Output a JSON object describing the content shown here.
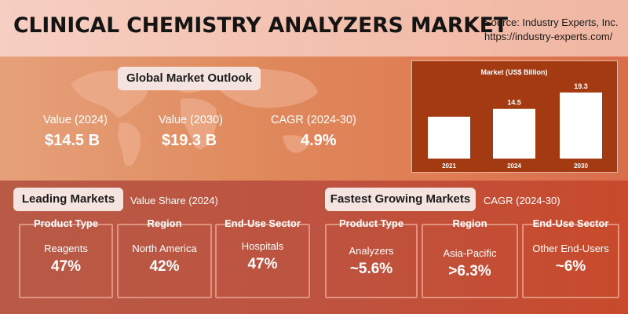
{
  "header": {
    "title": "CLINICAL CHEMISTRY ANALYZERS MARKET",
    "source_line1": "Source: Industry Experts, Inc.",
    "source_line2": "https://industry-experts.com/"
  },
  "outlook": {
    "label": "Global Market Outlook",
    "stats": [
      {
        "label": "Value (2024)",
        "value": "$14.5 B"
      },
      {
        "label": "Value (2030)",
        "value": "$19.3 B"
      },
      {
        "label": "CAGR (2024-30)",
        "value": "4.9%"
      }
    ]
  },
  "chart_data": {
    "type": "bar",
    "title": "Market (US$ Billion)",
    "categories": [
      "2021",
      "2024",
      "2030"
    ],
    "values": [
      null,
      14.5,
      19.3
    ],
    "data_labels": [
      "",
      "14.5",
      "19.3"
    ],
    "estimated_values": [
      12.2,
      14.5,
      19.3
    ],
    "xlabel": "",
    "ylabel": "",
    "ylim": [
      0,
      22
    ],
    "grid": false,
    "bar_color": "#ffffff",
    "background": "#a43a12"
  },
  "leading": {
    "label": "Leading Markets",
    "sublabel": "Value Share (2024)",
    "cards": [
      {
        "head": "Product Type",
        "sub": "Reagents",
        "value": "47%"
      },
      {
        "head": "Region",
        "sub": "North America",
        "value": "42%"
      },
      {
        "head": "End-Use Sector",
        "sub": "Hospitals",
        "value": "47%"
      }
    ]
  },
  "fastest": {
    "label": "Fastest Growing Markets",
    "sublabel": "CAGR (2024-30)",
    "cards": [
      {
        "head": "Product Type",
        "sub": "Analyzers",
        "value": "~5.6%"
      },
      {
        "head": "Region",
        "sub": "Asia-Pacific",
        "value": ">6.3%"
      },
      {
        "head": "End-Use Sector",
        "sub": "Other End-Users",
        "value": "~6%"
      }
    ]
  },
  "colors": {
    "accent": "#a43a12",
    "header_bg": "#f3c0ae",
    "pill_bg": "#f4e3de"
  }
}
